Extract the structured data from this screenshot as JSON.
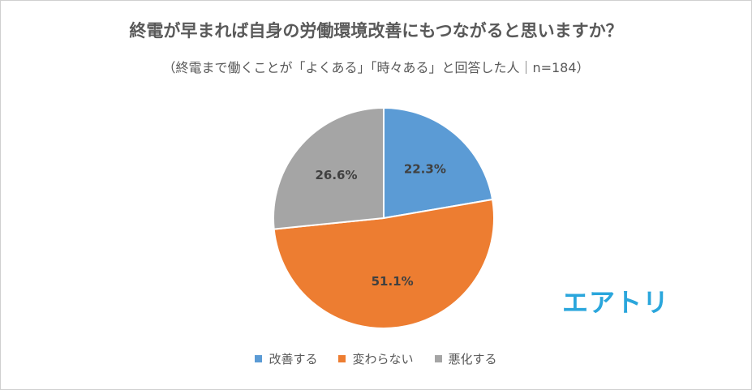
{
  "chart_data": {
    "type": "pie",
    "title": "終電が早まれば自身の労働環境改善にもつながると思いますか？",
    "subtitle": "（終電まで働くことが「よくある」「時々ある」と回答した人｜n=184）",
    "categories": [
      "改善する",
      "変わらない",
      "悪化する"
    ],
    "values": [
      22.3,
      51.1,
      26.6
    ],
    "labels": [
      "22.3%",
      "51.1%",
      "26.6%"
    ],
    "colors": [
      "#5b9bd5",
      "#ed7d31",
      "#a5a5a5"
    ],
    "legend_position": "bottom"
  },
  "logo": {
    "text": "エアトリ",
    "color": "#2aa6dc"
  }
}
